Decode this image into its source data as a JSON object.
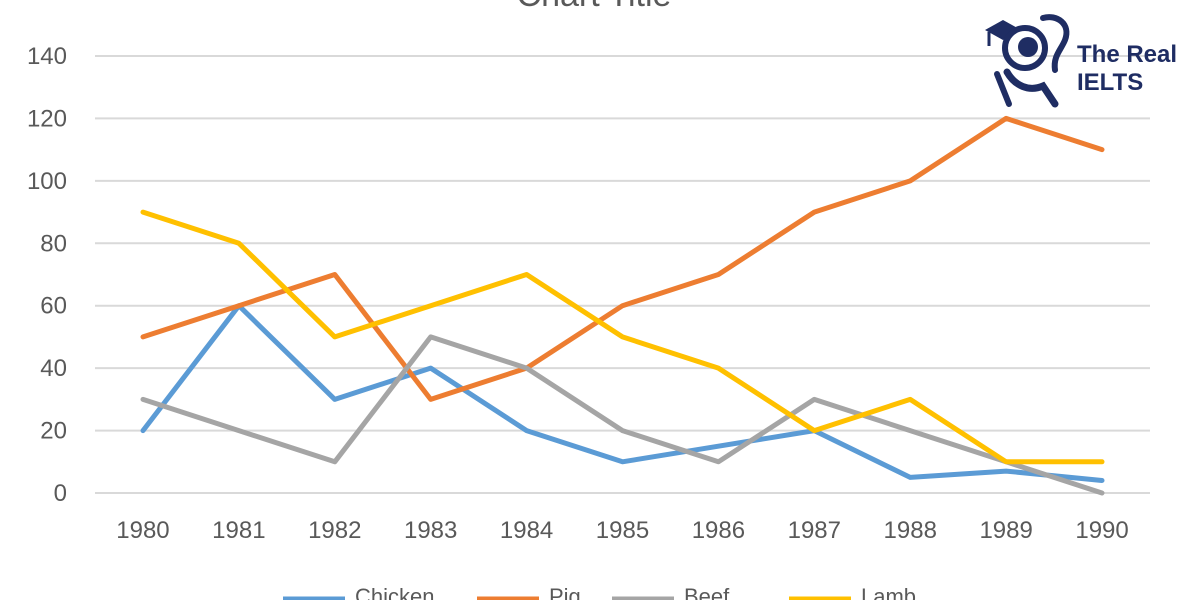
{
  "chart_data": {
    "type": "line",
    "title": "Chart Title",
    "xlabel": "",
    "ylabel": "",
    "x": [
      "1980",
      "1981",
      "1982",
      "1983",
      "1984",
      "1985",
      "1986",
      "1987",
      "1988",
      "1989",
      "1990"
    ],
    "ylim": [
      0,
      140
    ],
    "yticks": [
      0,
      20,
      40,
      60,
      80,
      100,
      120,
      140
    ],
    "grid": true,
    "legend_position": "bottom",
    "series": [
      {
        "name": "Chicken",
        "color": "#5b9bd5",
        "values": [
          20,
          60,
          30,
          40,
          20,
          10,
          15,
          20,
          5,
          7,
          4
        ]
      },
      {
        "name": "Pig",
        "color": "#ed7d31",
        "values": [
          50,
          60,
          70,
          30,
          40,
          60,
          70,
          90,
          100,
          120,
          110
        ]
      },
      {
        "name": "Beef",
        "color": "#a5a5a5",
        "values": [
          30,
          20,
          10,
          50,
          40,
          20,
          10,
          30,
          20,
          10,
          0
        ]
      },
      {
        "name": "Lamb",
        "color": "#ffc000",
        "values": [
          90,
          80,
          50,
          60,
          70,
          50,
          40,
          20,
          30,
          10,
          10
        ]
      }
    ]
  },
  "logo": {
    "line1": "The Real",
    "line2": "IELTS",
    "icon": "graduate-reading-icon",
    "color": "#1f2d63"
  }
}
